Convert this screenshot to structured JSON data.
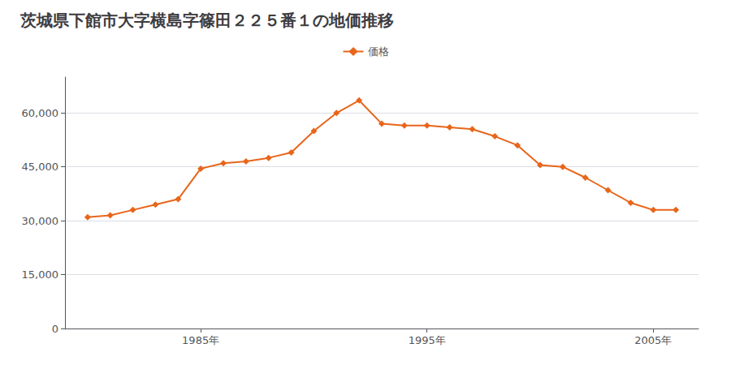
{
  "chart_data": {
    "type": "line",
    "title": "茨城県下館市大字横島字篠田２２５番１の地価推移",
    "x": [
      1980,
      1981,
      1982,
      1983,
      1984,
      1985,
      1986,
      1987,
      1988,
      1989,
      1990,
      1991,
      1992,
      1993,
      1994,
      1995,
      1996,
      1997,
      1998,
      1999,
      2000,
      2001,
      2002,
      2003,
      2004,
      2005,
      2006
    ],
    "series": [
      {
        "name": "価格",
        "color": "#e8651a",
        "marker": "diamond",
        "line_style": "solid",
        "values": [
          31000,
          31500,
          33000,
          34500,
          36000,
          44500,
          46000,
          46500,
          47500,
          49000,
          55000,
          60000,
          63500,
          57000,
          56500,
          56500,
          56000,
          55500,
          53500,
          51000,
          45500,
          45000,
          42000,
          38500,
          35000,
          33000,
          33000
        ]
      }
    ],
    "xlim": [
      1979,
      2007
    ],
    "xticks": [
      {
        "value": 1985,
        "label": "1985年"
      },
      {
        "value": 1995,
        "label": "1995年"
      },
      {
        "value": 2005,
        "label": "2005年"
      }
    ],
    "ylim": [
      0,
      70000
    ],
    "yticks": [
      0,
      {
        "value": 15000,
        "label": "15,000"
      },
      {
        "value": 30000,
        "label": "30,000"
      },
      {
        "value": 45000,
        "label": "45,000"
      },
      {
        "value": 60000,
        "label": "60,000"
      }
    ],
    "grid": true,
    "legend": "top"
  }
}
